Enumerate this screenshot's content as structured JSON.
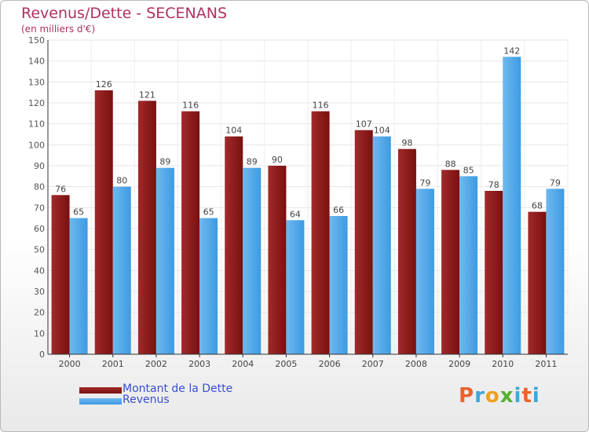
{
  "colors": {
    "dette": "#7a1010",
    "dette_light": "#a02a2a",
    "revenus": "#3d9be3",
    "revenus_light": "#6fb8ee",
    "title": "#b03060",
    "legend_text": "#3a4fd0"
  },
  "chart_data": {
    "type": "bar",
    "title": "Revenus/Dette - SECENANS",
    "subtitle": "(en milliers d'€)",
    "categories": [
      "2000",
      "2001",
      "2002",
      "2003",
      "2004",
      "2005",
      "2006",
      "2007",
      "2008",
      "2009",
      "2010",
      "2011"
    ],
    "series": [
      {
        "name": "Montant de la Dette",
        "values": [
          76,
          126,
          121,
          116,
          104,
          90,
          116,
          107,
          98,
          88,
          78,
          68
        ]
      },
      {
        "name": "Revenus",
        "values": [
          65,
          80,
          89,
          65,
          89,
          64,
          66,
          104,
          79,
          85,
          142,
          79
        ]
      }
    ],
    "ylim": [
      0,
      150
    ],
    "yticks": [
      0,
      10,
      20,
      30,
      40,
      50,
      60,
      70,
      80,
      90,
      100,
      110,
      120,
      130,
      140,
      150
    ],
    "grid": true,
    "legend_position": "bottom-left",
    "data_labels": true
  },
  "logo": {
    "text": "Proxiti",
    "letters": [
      "P",
      "r",
      "o",
      "x",
      "i",
      "t",
      "i"
    ]
  }
}
